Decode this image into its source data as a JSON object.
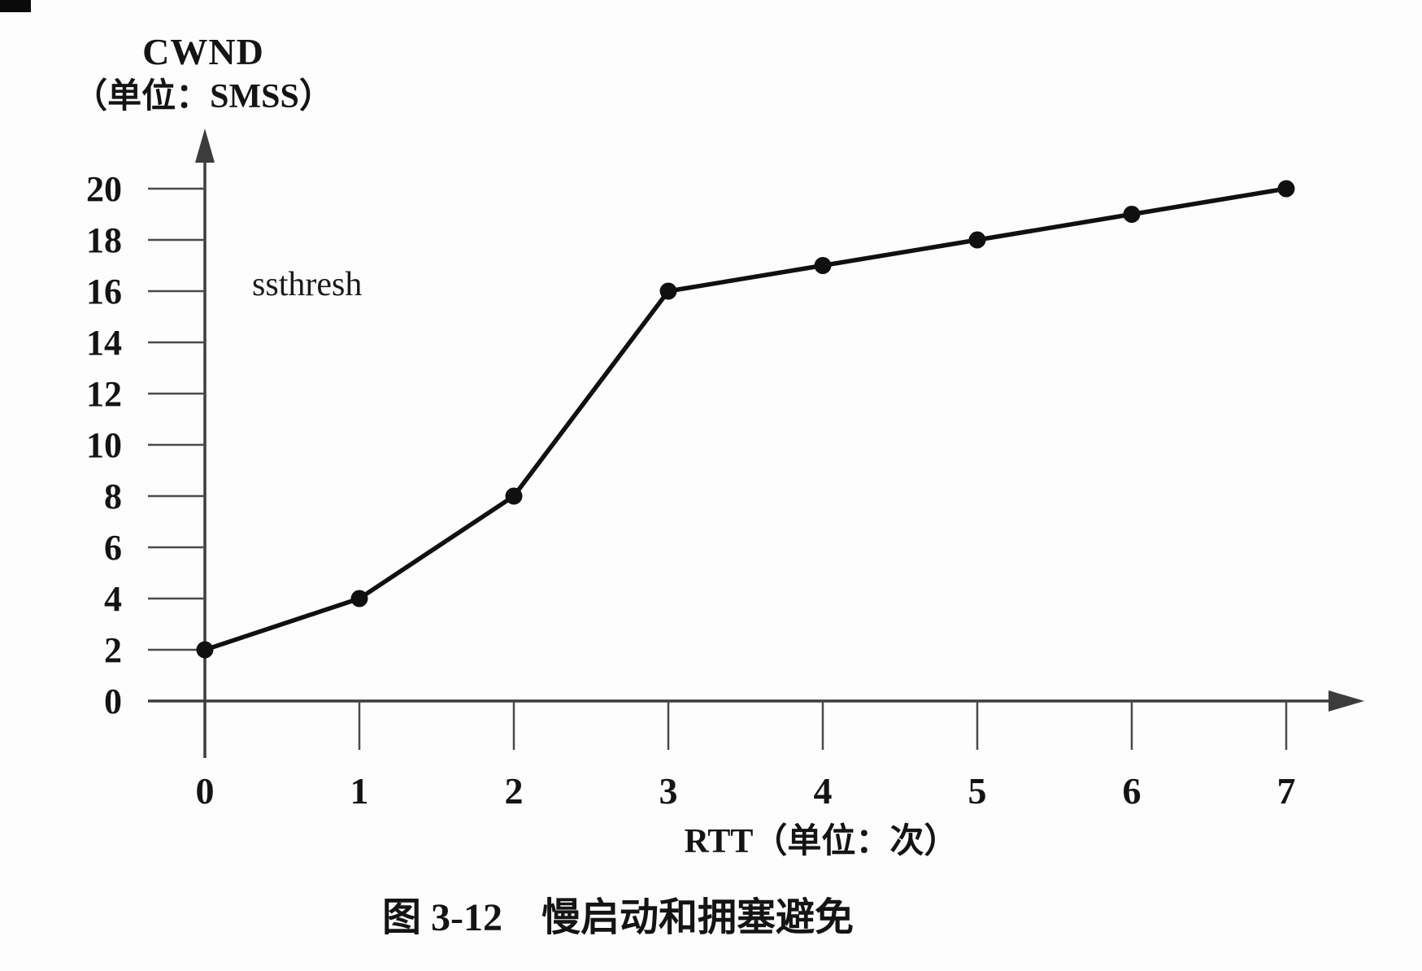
{
  "figure": {
    "y_axis_title_line1": "CWND",
    "y_axis_title_line2": "（单位：SMSS）",
    "annotation_ssthresh": "ssthresh",
    "x_axis_title": "RTT（单位：次）",
    "caption": "图 3-12　慢启动和拥塞避免"
  },
  "chart_data": {
    "type": "line",
    "title": "图 3-12　慢启动和拥塞避免",
    "xlabel": "RTT（单位：次）",
    "ylabel": "CWND（单位：SMSS）",
    "x": [
      0,
      1,
      2,
      3,
      4,
      5,
      6,
      7
    ],
    "series": [
      {
        "name": "CWND",
        "values": [
          2,
          4,
          8,
          16,
          17,
          18,
          19,
          20
        ]
      }
    ],
    "x_tick_labels": [
      "0",
      "1",
      "2",
      "3",
      "4",
      "5",
      "6",
      "7"
    ],
    "y_tick_values": [
      0,
      2,
      4,
      6,
      8,
      10,
      12,
      14,
      16,
      18,
      20
    ],
    "y_tick_labels": [
      "0",
      "2",
      "4",
      "6",
      "8",
      "10",
      "12",
      "14",
      "16",
      "18",
      "20"
    ],
    "xlim": [
      0,
      7.6
    ],
    "ylim": [
      0,
      22
    ],
    "grid": false,
    "legend": false,
    "marker": "filled-circle",
    "annotations": [
      {
        "text": "ssthresh",
        "near_x": 0.4,
        "near_y": 16
      }
    ],
    "phases": {
      "slow_start_x": [
        0,
        3
      ],
      "congestion_avoidance_x": [
        3,
        7
      ]
    }
  },
  "colors": {
    "line": "#101010",
    "marker": "#101010",
    "axis": "#3c3c3c",
    "tick": "#4a4a4a",
    "text": "#141414",
    "background": "#fdfdfd"
  }
}
